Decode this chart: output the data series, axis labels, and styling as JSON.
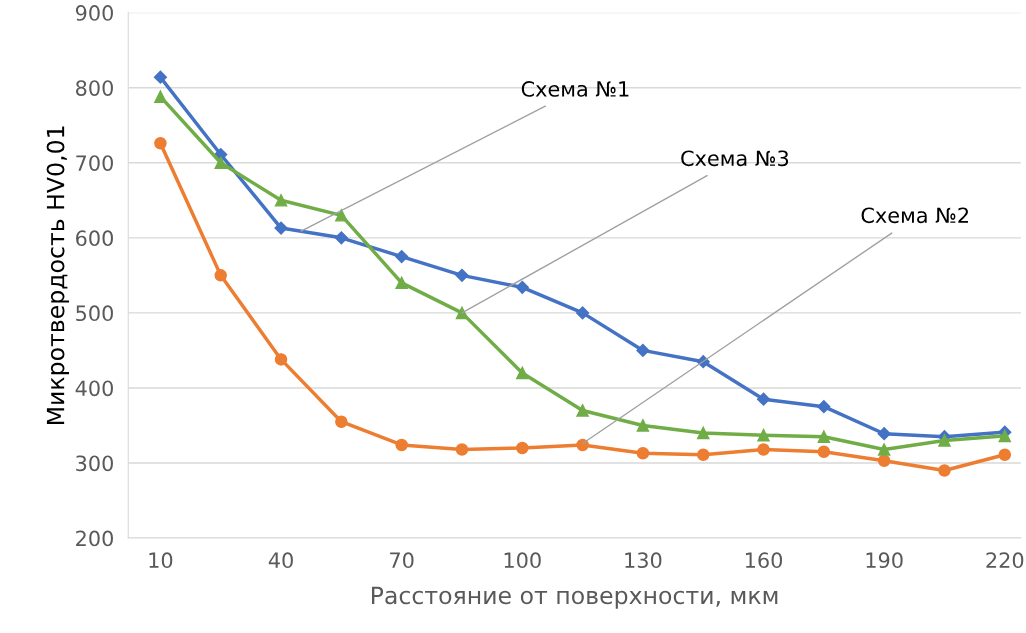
{
  "chart_data": {
    "type": "line",
    "xlabel": "Расстояние от поверхности, мкм",
    "ylabel": "Микротвердость HV0,01",
    "x": [
      10,
      25,
      40,
      55,
      70,
      85,
      100,
      115,
      130,
      145,
      160,
      175,
      190,
      205,
      220
    ],
    "series": [
      {
        "color": "#4472c4",
        "marker": "diamond",
        "values": [
          814,
          711,
          613,
          600,
          575,
          550,
          534,
          500,
          450,
          435,
          385,
          375,
          339,
          335,
          341
        ]
      },
      {
        "color": "#ed7d31",
        "marker": "circle",
        "values": [
          726,
          550,
          438,
          355,
          324,
          318,
          320,
          324,
          313,
          311,
          318,
          315,
          303,
          290,
          311
        ]
      },
      {
        "color": "#70ad47",
        "marker": "triangle",
        "values": [
          788,
          700,
          650,
          630,
          540,
          500,
          420,
          370,
          350,
          340,
          337,
          335,
          318,
          330,
          336
        ]
      }
    ],
    "annotations": [
      {
        "text": "Схема №1",
        "x": 45,
        "y": 609
      },
      {
        "text": "Схема №3",
        "x": 85,
        "y": 500
      },
      {
        "text": "Схема №2",
        "x": 115,
        "y": 326
      }
    ],
    "xlim": [
      2,
      224
    ],
    "xticks": [
      10,
      40,
      70,
      100,
      130,
      160,
      190,
      220
    ],
    "ylim": [
      200,
      900
    ],
    "yticks": [
      200,
      300,
      400,
      500,
      600,
      700,
      800,
      900
    ],
    "grid": "y",
    "line_style": "solid"
  }
}
